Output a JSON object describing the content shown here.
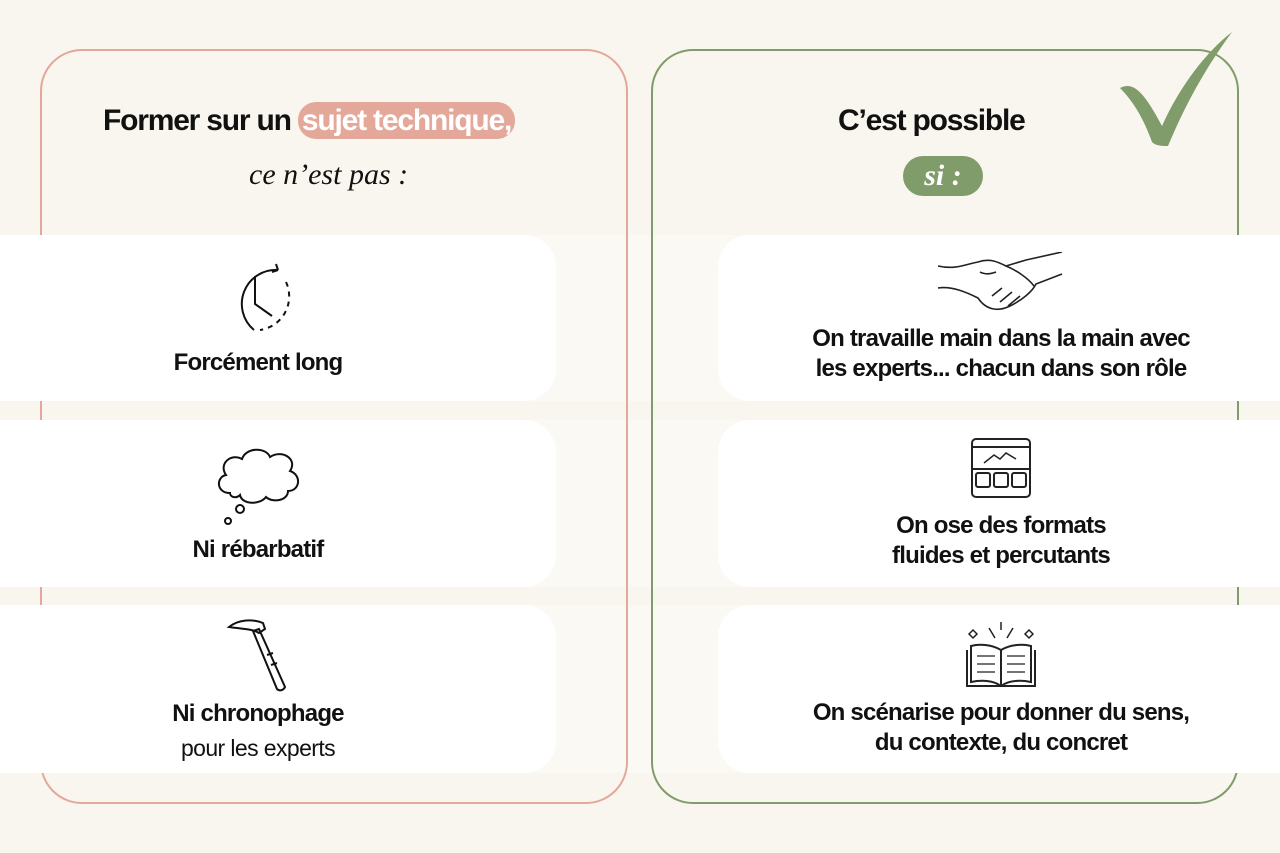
{
  "left": {
    "title_prefix": "Former sur un",
    "title_highlight": "sujet technique,",
    "subtitle": "ce n’est pas :",
    "items": [
      {
        "icon": "clock-icon",
        "label": "Forcément long"
      },
      {
        "icon": "thought-bubble-icon",
        "label": "Ni rébarbatif"
      },
      {
        "icon": "hammer-icon",
        "label": "Ni chronophage",
        "sub": "pour les experts"
      }
    ]
  },
  "right": {
    "title": "C’est possible",
    "subtitle": "si :",
    "items": [
      {
        "icon": "handshake-icon",
        "label_lines": [
          "On travaille main dans la main avec",
          "les experts... chacun dans son rôle"
        ]
      },
      {
        "icon": "web-layout-icon",
        "label_lines": [
          "On ose des formats",
          "fluides et percutants"
        ]
      },
      {
        "icon": "open-book-icon",
        "label_lines": [
          "On scénarise pour donner du sens,",
          "du contexte, du concret"
        ]
      }
    ]
  },
  "colors": {
    "background": "#f9f6ef",
    "pink": "#e3a899",
    "green": "#7f9c6a"
  }
}
